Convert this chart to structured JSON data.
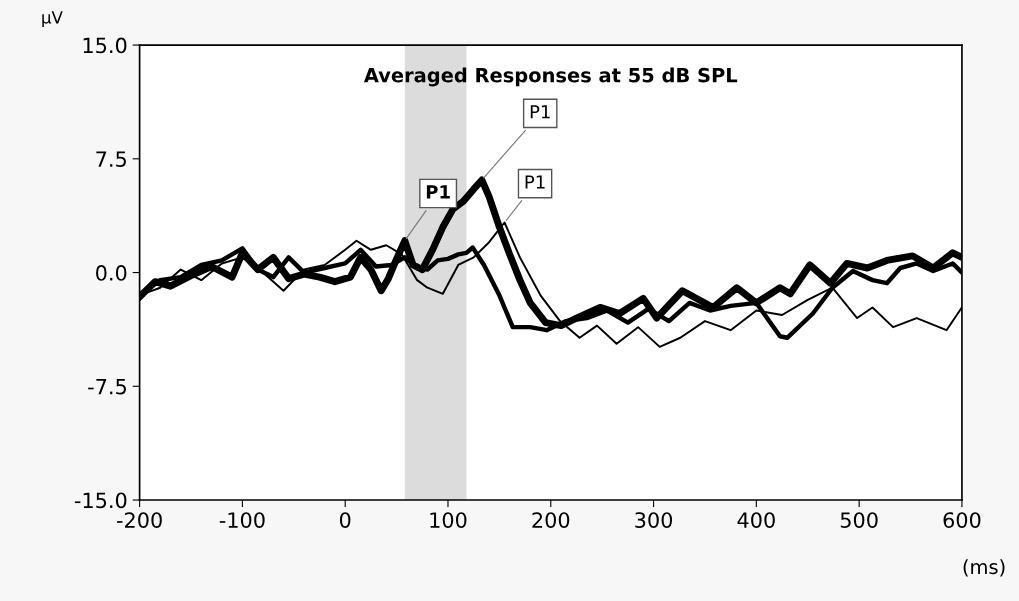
{
  "chart_data": {
    "type": "line",
    "title": "Averaged Responses at 55 dB SPL",
    "xlabel": "(ms)",
    "ylabel": "μV",
    "xlim": [
      -200,
      600
    ],
    "xticks": [
      -200,
      -100,
      0,
      100,
      200,
      300,
      400,
      500,
      600
    ],
    "ylim": [
      -15,
      15
    ],
    "yticks": [
      {
        "value": -15,
        "label": "-15.0"
      },
      {
        "value": -7.5,
        "label": "-7.5"
      },
      {
        "value": 0,
        "label": "0.0"
      },
      {
        "value": 7.5,
        "label": "7.5"
      },
      {
        "value": 15,
        "label": "15.0"
      }
    ],
    "grid": false,
    "legend": false,
    "marker": "none",
    "line_style": "solid",
    "bands": [
      {
        "axis": "x",
        "from": 58,
        "to": 118,
        "color": "#dcdcdc"
      }
    ],
    "annotations": [
      {
        "text": "P1",
        "x": 58,
        "y": 2.1
      },
      {
        "text": "P1",
        "x": 133,
        "y": 6.1
      },
      {
        "text": "P1",
        "x": 155,
        "y": 3.3
      }
    ],
    "series": [
      {
        "color": "#000000",
        "x": [
          -200,
          -185,
          -170,
          -150,
          -130,
          -110,
          -100,
          -85,
          -70,
          -55,
          -40,
          -25,
          -10,
          5,
          15,
          25,
          35,
          42,
          50,
          58,
          66,
          75,
          85,
          95,
          105,
          115,
          125,
          133,
          140,
          150,
          160,
          170,
          180,
          195,
          210,
          225,
          248,
          267,
          290,
          303,
          328,
          358,
          381,
          400,
          423,
          433,
          452,
          472,
          488,
          508,
          527,
          552,
          572,
          591,
          600
        ],
        "values": [
          -1.6,
          -0.6,
          -0.9,
          -0.2,
          0.4,
          -0.3,
          1.3,
          0.2,
          1.0,
          -0.4,
          -0.1,
          -0.3,
          -0.6,
          -0.3,
          1.0,
          0.2,
          -1.2,
          -0.4,
          0.9,
          2.1,
          0.5,
          0.2,
          1.5,
          3.0,
          4.2,
          4.7,
          5.5,
          6.1,
          5.0,
          3.0,
          1.2,
          -0.5,
          -2.0,
          -3.3,
          -3.5,
          -3.0,
          -2.3,
          -2.7,
          -1.7,
          -3.0,
          -1.2,
          -2.3,
          -1.0,
          -2.0,
          -1.0,
          -1.4,
          0.5,
          -0.7,
          0.6,
          0.3,
          0.8,
          1.1,
          0.3,
          1.3,
          1.0
        ]
      },
      {
        "color": "#000000",
        "x": [
          -200,
          -180,
          -160,
          -140,
          -120,
          -100,
          -85,
          -70,
          -55,
          -40,
          -20,
          0,
          15,
          30,
          45,
          58,
          70,
          80,
          90,
          100,
          110,
          118,
          124,
          135,
          150,
          163,
          180,
          196,
          215,
          235,
          255,
          275,
          295,
          315,
          335,
          355,
          375,
          400,
          423,
          430,
          455,
          474,
          494,
          513,
          527,
          540,
          556,
          572,
          591,
          600
        ],
        "values": [
          -1.5,
          -0.5,
          -0.3,
          0.5,
          0.8,
          1.6,
          0.2,
          -0.3,
          1.0,
          0.0,
          0.3,
          0.6,
          1.5,
          0.4,
          0.5,
          1.0,
          0.3,
          0.2,
          0.8,
          0.9,
          1.2,
          1.3,
          1.65,
          0.5,
          -1.5,
          -3.6,
          -3.6,
          -3.8,
          -3.2,
          -3.0,
          -2.5,
          -3.3,
          -2.4,
          -3.2,
          -2.0,
          -2.5,
          -2.2,
          -2.0,
          -4.2,
          -4.3,
          -2.7,
          -1.0,
          0.1,
          -0.5,
          -0.7,
          0.3,
          0.6,
          0.1,
          0.6,
          0.0
        ]
      },
      {
        "color": "#000000",
        "x": [
          -200,
          -180,
          -160,
          -140,
          -120,
          -100,
          -80,
          -60,
          -40,
          -20,
          0,
          11,
          25,
          40,
          55,
          70,
          80,
          95,
          110,
          125,
          140,
          155,
          170,
          190,
          209,
          228,
          245,
          264,
          285,
          306,
          326,
          350,
          375,
          400,
          425,
          450,
          474,
          498,
          513,
          533,
          556,
          585,
          600
        ],
        "values": [
          -1.5,
          -1.0,
          0.2,
          -0.5,
          0.6,
          1.0,
          0.0,
          -1.2,
          0.2,
          0.5,
          1.5,
          2.1,
          1.5,
          1.8,
          1.2,
          -0.5,
          -1.0,
          -1.4,
          0.5,
          1.0,
          2.0,
          3.3,
          1.0,
          -1.5,
          -3.2,
          -4.3,
          -3.5,
          -4.7,
          -3.6,
          -4.9,
          -4.3,
          -3.2,
          -3.8,
          -2.5,
          -2.8,
          -1.8,
          -1.0,
          -3.0,
          -2.3,
          -3.6,
          -3.0,
          -3.8,
          -2.3
        ]
      }
    ]
  }
}
